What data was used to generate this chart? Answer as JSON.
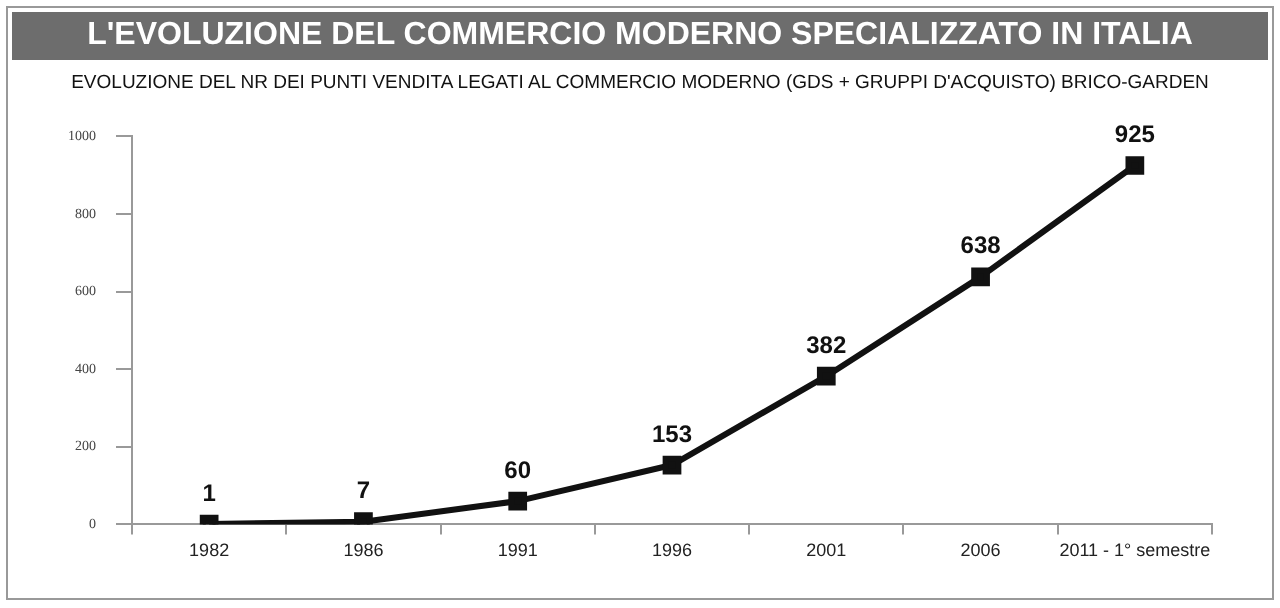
{
  "chart_data": {
    "type": "line",
    "title": "L'EVOLUZIONE DEL COMMERCIO MODERNO SPECIALIZZATO IN ITALIA",
    "subtitle": "EVOLUZIONE DEL NR DEI PUNTI VENDITA LEGATI AL COMMERCIO MODERNO (GDS + GRUPPI D'ACQUISTO) BRICO-GARDEN",
    "categories": [
      "1982",
      "1986",
      "1991",
      "1996",
      "2001",
      "2006",
      "2011 - 1° semestre"
    ],
    "values": [
      1,
      7,
      60,
      153,
      382,
      638,
      925
    ],
    "color": "#111111",
    "ylim": [
      0,
      1000
    ],
    "yticks": [
      0,
      200,
      400,
      600,
      800,
      1000
    ],
    "grid": false,
    "legend": false,
    "marker": "square",
    "line_style": "solid",
    "data_labels": true
  }
}
